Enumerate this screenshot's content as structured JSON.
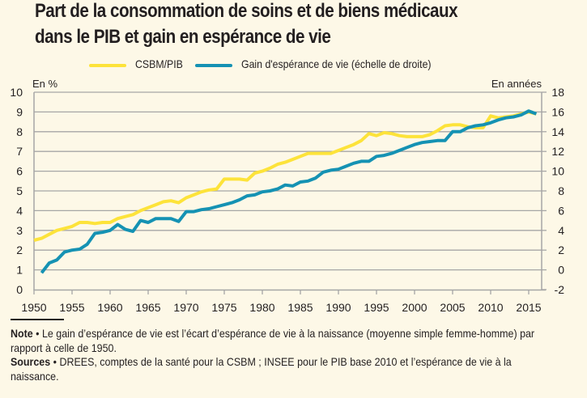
{
  "title_lines": [
    "Part de la consommation de soins et de biens médicaux",
    "dans le PIB et gain en espérance de vie"
  ],
  "legend": [
    {
      "label": "CSBM/PIB",
      "color": "#fde33a"
    },
    {
      "label": "Gain d'espérance de vie (échelle de droite)",
      "color": "#1592b3"
    }
  ],
  "footer": {
    "note_label": "Note",
    "note_text": " • Le gain d’espérance de vie est l’écart d’espérance de vie à la naissance (moyenne  simple femme-homme) par rapport à celle de 1950.",
    "sources_label": "Sources",
    "sources_text": " • DREES, comptes de la santé pour la CSBM ; INSEE pour le PIB base 2010 et l’espérance de vie à la naissance."
  },
  "chart_data": {
    "type": "line",
    "title": "Part de la consommation de soins et de biens médicaux dans le PIB et gain en espérance de vie",
    "xlabel": "",
    "ylabel_left": "En %",
    "ylabel_right": "En années",
    "xlim": [
      1950,
      2016
    ],
    "ylim_left": [
      0,
      10
    ],
    "ylim_right": [
      -2,
      18
    ],
    "x_ticks": [
      1950,
      1955,
      1960,
      1965,
      1970,
      1975,
      1980,
      1985,
      1990,
      1995,
      2000,
      2005,
      2010,
      2015
    ],
    "y_ticks_left": [
      0,
      1,
      2,
      3,
      4,
      5,
      6,
      7,
      8,
      9,
      10
    ],
    "y_ticks_right": [
      -2,
      0,
      2,
      4,
      6,
      8,
      10,
      12,
      14,
      16,
      18
    ],
    "grid": "horizontal",
    "legend_position": "top-center",
    "series": [
      {
        "name": "CSBM/PIB",
        "axis": "left",
        "color": "#fde33a",
        "x": [
          1950,
          1951,
          1952,
          1953,
          1954,
          1955,
          1956,
          1957,
          1958,
          1959,
          1960,
          1961,
          1962,
          1963,
          1964,
          1965,
          1966,
          1967,
          1968,
          1969,
          1970,
          1971,
          1972,
          1973,
          1974,
          1975,
          1976,
          1977,
          1978,
          1979,
          1980,
          1981,
          1982,
          1983,
          1984,
          1985,
          1986,
          1987,
          1988,
          1989,
          1990,
          1991,
          1992,
          1993,
          1994,
          1995,
          1996,
          1997,
          1998,
          1999,
          2000,
          2001,
          2002,
          2003,
          2004,
          2005,
          2006,
          2007,
          2008,
          2009,
          2010,
          2011,
          2012,
          2013,
          2014,
          2015,
          2016
        ],
        "values": [
          2.5,
          2.6,
          2.8,
          3.0,
          3.1,
          3.2,
          3.4,
          3.4,
          3.35,
          3.4,
          3.4,
          3.6,
          3.7,
          3.8,
          4.0,
          4.15,
          4.3,
          4.45,
          4.5,
          4.4,
          4.65,
          4.8,
          4.95,
          5.05,
          5.1,
          5.6,
          5.6,
          5.6,
          5.55,
          5.9,
          6.0,
          6.15,
          6.35,
          6.45,
          6.6,
          6.75,
          6.9,
          6.9,
          6.9,
          6.9,
          7.05,
          7.2,
          7.35,
          7.55,
          7.9,
          7.8,
          7.95,
          7.9,
          7.8,
          7.75,
          7.75,
          7.75,
          7.85,
          8.05,
          8.3,
          8.35,
          8.35,
          8.25,
          8.2,
          8.2,
          8.8,
          8.7,
          8.75,
          8.8,
          8.9,
          9.0,
          8.9
        ]
      },
      {
        "name": "Gain d'espérance de vie (échelle de droite)",
        "axis": "right",
        "color": "#1592b3",
        "x": [
          1951,
          1952,
          1953,
          1954,
          1955,
          1956,
          1957,
          1958,
          1959,
          1960,
          1961,
          1962,
          1963,
          1964,
          1965,
          1966,
          1967,
          1968,
          1969,
          1970,
          1971,
          1972,
          1973,
          1974,
          1975,
          1976,
          1977,
          1978,
          1979,
          1980,
          1981,
          1982,
          1983,
          1984,
          1985,
          1986,
          1987,
          1988,
          1989,
          1990,
          1991,
          1992,
          1993,
          1994,
          1995,
          1996,
          1997,
          1998,
          1999,
          2000,
          2001,
          2002,
          2003,
          2004,
          2005,
          2006,
          2007,
          2008,
          2009,
          2010,
          2011,
          2012,
          2013,
          2014,
          2015,
          2016
        ],
        "values": [
          -0.3,
          0.7,
          1.0,
          1.8,
          2.0,
          2.1,
          2.6,
          3.7,
          3.8,
          4.0,
          4.6,
          4.1,
          3.9,
          5.0,
          4.8,
          5.2,
          5.2,
          5.2,
          4.9,
          5.9,
          5.9,
          6.1,
          6.2,
          6.4,
          6.6,
          6.8,
          7.1,
          7.5,
          7.6,
          7.9,
          8.0,
          8.2,
          8.6,
          8.5,
          8.9,
          9.0,
          9.3,
          9.9,
          10.1,
          10.2,
          10.5,
          10.8,
          11.0,
          11.0,
          11.5,
          11.6,
          11.8,
          12.1,
          12.4,
          12.7,
          12.9,
          13.0,
          13.1,
          13.1,
          14.0,
          14.0,
          14.4,
          14.6,
          14.7,
          14.9,
          15.2,
          15.4,
          15.5,
          15.7,
          16.1,
          15.8
        ]
      }
    ]
  }
}
